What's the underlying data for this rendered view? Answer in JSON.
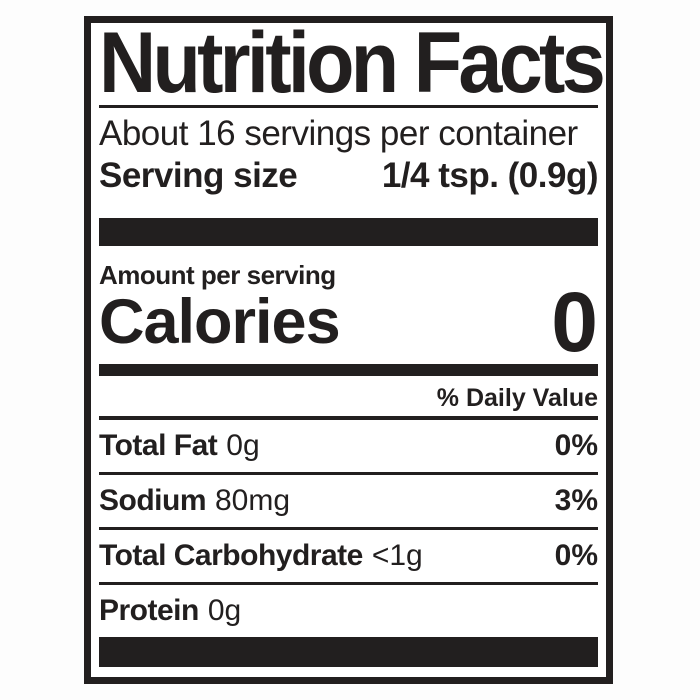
{
  "label": {
    "title": "Nutrition Facts",
    "servings_per_container": "About 16 servings per container",
    "serving_size": {
      "label": "Serving size",
      "value": "1/4 tsp. (0.9g)"
    },
    "amount_per_serving": "Amount per serving",
    "calories": {
      "label": "Calories",
      "value": "0"
    },
    "daily_value_header": "% Daily Value",
    "nutrients": [
      {
        "name": "Total Fat",
        "amount": "0g",
        "daily_value": "0%"
      },
      {
        "name": "Sodium",
        "amount": "80mg",
        "daily_value": "3%"
      },
      {
        "name": "Total Carbohydrate",
        "amount": "<1g",
        "daily_value": "0%"
      },
      {
        "name": "Protein",
        "amount": "0g",
        "daily_value": ""
      }
    ],
    "colors": {
      "ink": "#221f1f",
      "label_background": "#ffffff",
      "page_background": "#fdfdfd"
    }
  }
}
